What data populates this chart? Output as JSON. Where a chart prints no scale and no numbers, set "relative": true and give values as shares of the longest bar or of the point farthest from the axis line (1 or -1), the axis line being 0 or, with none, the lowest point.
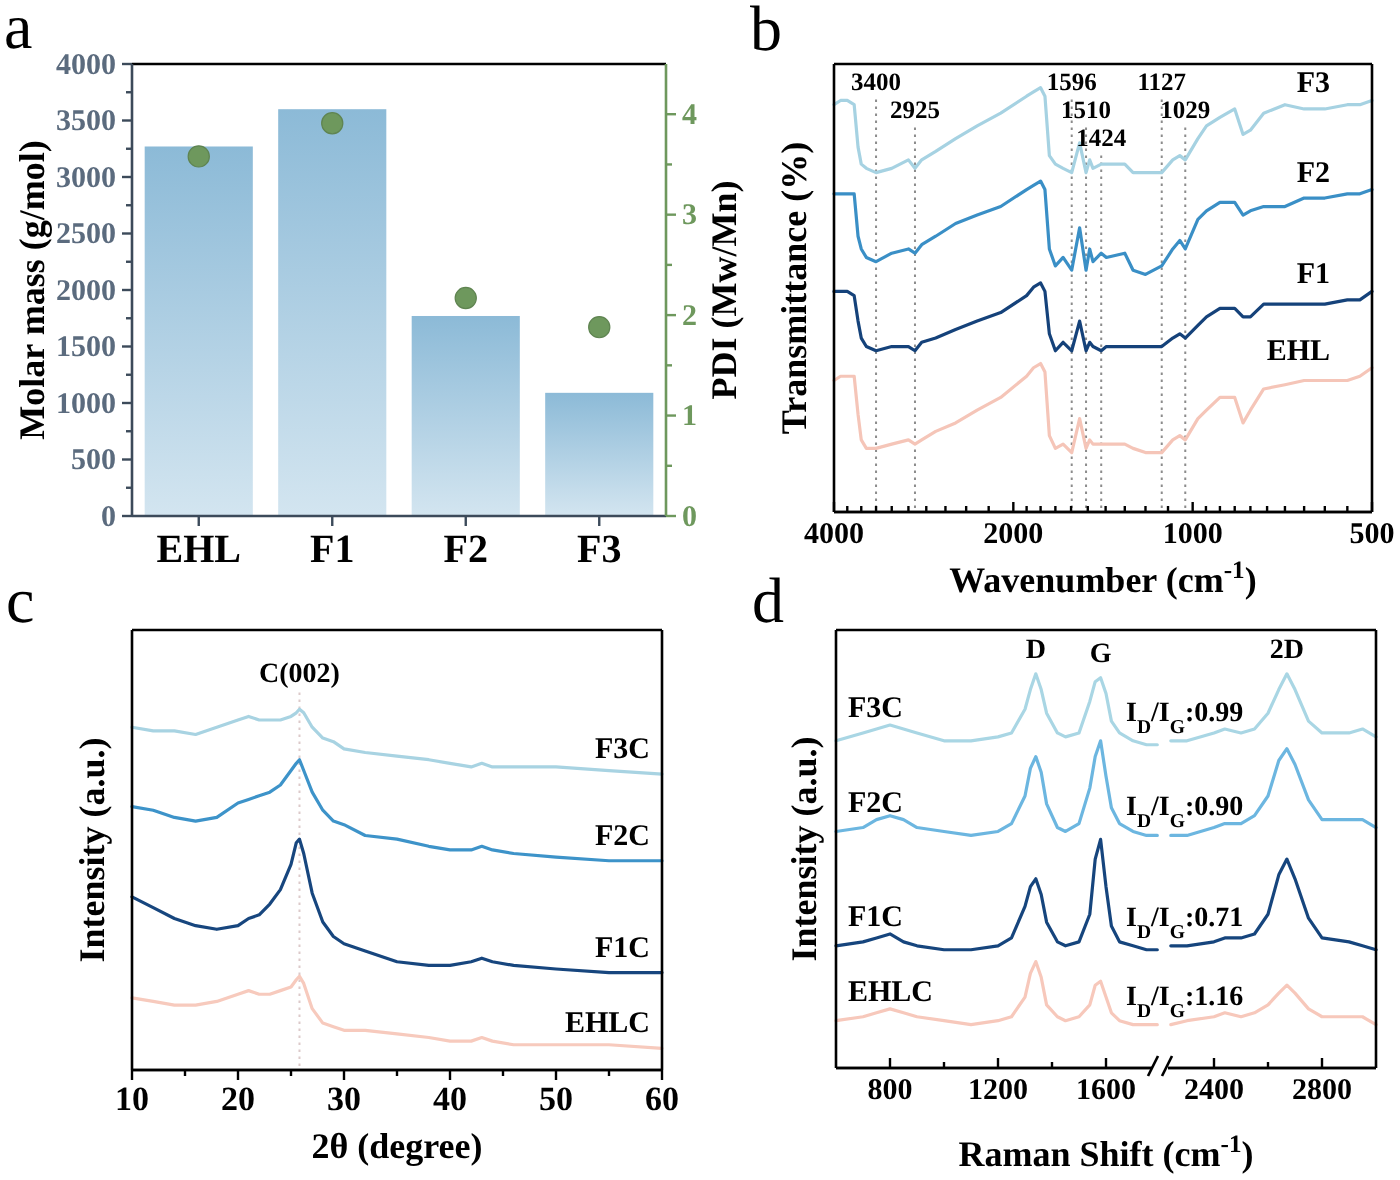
{
  "chart_data": [
    {
      "type": "bar",
      "title": "a",
      "categories": [
        "EHL",
        "F1",
        "F2",
        "F3"
      ],
      "ylabel": "Molar mass (g/mol)",
      "y2label": "PDI (Mw/Mn)",
      "ylim": [
        0,
        4000
      ],
      "yticks": [
        0,
        {
          "value": 250,
          "label": null
        },
        500,
        {
          "value": 750,
          "label": null
        },
        1000,
        {
          "value": 1250,
          "label": null
        },
        1500,
        {
          "value": 1750,
          "label": null
        },
        2000,
        {
          "value": 2250,
          "label": null
        },
        2500,
        {
          "value": 2750,
          "label": null
        },
        3000,
        {
          "value": 3250,
          "label": null
        },
        3500,
        {
          "value": 3750,
          "label": null
        },
        4000
      ],
      "y2lim": [
        0,
        4.5
      ],
      "y2ticks": [
        0,
        {
          "value": 0.5,
          "label": null
        },
        1,
        {
          "value": 1.5,
          "label": null
        },
        2,
        {
          "value": 2.5,
          "label": null
        },
        3,
        {
          "value": 3.5,
          "label": null
        },
        4
      ],
      "marker": "circle",
      "series": [
        {
          "color": "#8cbad7",
          "values": [
            3270,
            3600,
            1770,
            1090
          ]
        },
        {
          "type": "scatter",
          "axis": "y2",
          "color": "#6e985d",
          "x": [
            "EHL",
            "F1",
            "F2",
            "F3"
          ],
          "values": [
            3.58,
            3.91,
            2.17,
            1.88
          ]
        }
      ]
    },
    {
      "type": "line",
      "title": "b",
      "xlabel": "Wavenumber (cm$^{-1}$)",
      "ylabel": "Transmittance (%)",
      "relative": true,
      "log": "x",
      "xlim": [
        4000,
        500
      ],
      "xticks": [
        4000,
        {
          "value": 3800,
          "label": null
        },
        {
          "value": 3600,
          "label": null
        },
        {
          "value": 3400,
          "label": null
        },
        {
          "value": 3200,
          "label": null
        },
        {
          "value": 3000,
          "label": null
        },
        {
          "value": 2800,
          "label": null
        },
        {
          "value": 2600,
          "label": null
        },
        {
          "value": 2400,
          "label": null
        },
        {
          "value": 2200,
          "label": null
        },
        2000,
        {
          "value": 1900,
          "label": null
        },
        {
          "value": 1800,
          "label": null
        },
        {
          "value": 1700,
          "label": null
        },
        {
          "value": 1600,
          "label": null
        },
        {
          "value": 1500,
          "label": null
        },
        {
          "value": 1400,
          "label": null
        },
        {
          "value": 1300,
          "label": null
        },
        {
          "value": 1200,
          "label": null
        },
        {
          "value": 1100,
          "label": null
        },
        1000,
        {
          "value": 950,
          "label": null
        },
        {
          "value": 900,
          "label": null
        },
        {
          "value": 850,
          "label": null
        },
        {
          "value": 800,
          "label": null
        },
        {
          "value": 750,
          "label": null
        },
        {
          "value": 700,
          "label": null
        },
        {
          "value": 650,
          "label": null
        },
        {
          "value": 600,
          "label": null
        },
        {
          "value": 550,
          "label": null
        },
        500
      ],
      "x": [
        4000,
        3900,
        3800,
        3700,
        3645,
        3600,
        3530,
        3400,
        3200,
        3000,
        2925,
        2850,
        2700,
        2500,
        2300,
        2100,
        1900,
        1850,
        1800,
        1770,
        1740,
        1700,
        1650,
        1596,
        1548,
        1510,
        1489,
        1470,
        1424,
        1396,
        1300,
        1259,
        1200,
        1127,
        1080,
        1051,
        1029,
        980,
        948,
        900,
        850,
        823,
        800,
        760,
        700,
        650,
        600,
        550,
        524,
        500
      ],
      "series": [
        {
          "name": "F3",
          "color": "#a6d2e2",
          "values": [
            0.96,
            0.97,
            0.97,
            0.96,
            0.86,
            0.82,
            0.81,
            0.8,
            0.81,
            0.83,
            0.81,
            0.83,
            0.85,
            0.88,
            0.91,
            0.94,
            0.98,
            0.99,
            1.0,
            0.98,
            0.84,
            0.82,
            0.81,
            0.8,
            0.87,
            0.8,
            0.83,
            0.81,
            0.82,
            0.82,
            0.82,
            0.8,
            0.8,
            0.8,
            0.83,
            0.84,
            0.83,
            0.88,
            0.91,
            0.93,
            0.95,
            0.89,
            0.9,
            0.94,
            0.96,
            0.95,
            0.95,
            0.96,
            0.96,
            0.97
          ]
        },
        {
          "name": "F2",
          "color": "#3a8fc6",
          "values": [
            0.75,
            0.75,
            0.75,
            0.75,
            0.65,
            0.62,
            0.6,
            0.59,
            0.61,
            0.62,
            0.61,
            0.63,
            0.65,
            0.68,
            0.7,
            0.72,
            0.76,
            0.77,
            0.78,
            0.76,
            0.62,
            0.58,
            0.6,
            0.57,
            0.67,
            0.57,
            0.62,
            0.59,
            0.61,
            0.6,
            0.61,
            0.57,
            0.56,
            0.58,
            0.62,
            0.64,
            0.62,
            0.69,
            0.71,
            0.73,
            0.73,
            0.7,
            0.71,
            0.72,
            0.72,
            0.74,
            0.74,
            0.75,
            0.75,
            0.76
          ]
        },
        {
          "name": "F1",
          "color": "#15427a",
          "values": [
            0.52,
            0.52,
            0.52,
            0.51,
            0.45,
            0.41,
            0.39,
            0.38,
            0.39,
            0.39,
            0.38,
            0.4,
            0.41,
            0.43,
            0.45,
            0.47,
            0.51,
            0.53,
            0.54,
            0.52,
            0.42,
            0.38,
            0.4,
            0.38,
            0.45,
            0.38,
            0.4,
            0.39,
            0.38,
            0.39,
            0.39,
            0.39,
            0.39,
            0.39,
            0.41,
            0.42,
            0.41,
            0.44,
            0.46,
            0.48,
            0.48,
            0.46,
            0.46,
            0.49,
            0.49,
            0.49,
            0.49,
            0.5,
            0.5,
            0.52
          ]
        },
        {
          "name": "EHL",
          "color": "#f5c5b8",
          "values": [
            0.31,
            0.32,
            0.32,
            0.32,
            0.23,
            0.17,
            0.15,
            0.15,
            0.16,
            0.17,
            0.16,
            0.17,
            0.19,
            0.21,
            0.24,
            0.27,
            0.32,
            0.34,
            0.35,
            0.33,
            0.18,
            0.15,
            0.16,
            0.14,
            0.22,
            0.15,
            0.17,
            0.16,
            0.16,
            0.16,
            0.16,
            0.15,
            0.14,
            0.14,
            0.17,
            0.18,
            0.17,
            0.22,
            0.24,
            0.27,
            0.27,
            0.21,
            0.24,
            0.29,
            0.3,
            0.31,
            0.31,
            0.31,
            0.32,
            0.34
          ]
        }
      ],
      "ref_lines": [
        {
          "axis": "x",
          "value": 3400,
          "label": "3400",
          "color": "#8c8c8c",
          "line_style": "dotted"
        },
        {
          "axis": "x",
          "value": 2925,
          "label": "2925",
          "color": "#8c8c8c",
          "line_style": "dotted"
        },
        {
          "axis": "x",
          "value": 1596,
          "label": "1596",
          "color": "#8c8c8c",
          "line_style": "dotted"
        },
        {
          "axis": "x",
          "value": 1510,
          "label": "1510",
          "color": "#8c8c8c",
          "line_style": "dotted"
        },
        {
          "axis": "x",
          "value": 1424,
          "label": "1424",
          "color": "#8c8c8c",
          "line_style": "dotted"
        },
        {
          "axis": "x",
          "value": 1127,
          "label": "1127",
          "color": "#8c8c8c",
          "line_style": "dotted"
        },
        {
          "axis": "x",
          "value": 1029,
          "label": "1029",
          "color": "#8c8c8c",
          "line_style": "dotted"
        }
      ]
    },
    {
      "type": "line",
      "title": "c",
      "xlabel": "2θ (degree)",
      "ylabel": "Intensity (a.u.)",
      "relative": true,
      "xlim": [
        10,
        60
      ],
      "xticks": [
        10,
        {
          "value": 15,
          "label": null
        },
        20,
        {
          "value": 25,
          "label": null
        },
        30,
        {
          "value": 35,
          "label": null
        },
        40,
        {
          "value": 45,
          "label": null
        },
        50,
        {
          "value": 55,
          "label": null
        },
        60
      ],
      "x": [
        10,
        12,
        14,
        16,
        18,
        20,
        21,
        22,
        23,
        24,
        25,
        25.5,
        25.8,
        26.2,
        27,
        28,
        29,
        30,
        32,
        35,
        38,
        40,
        42,
        43,
        44,
        46,
        50,
        55,
        60
      ],
      "series": [
        {
          "name": "F3C",
          "color": "#a8d3e2",
          "values": [
            0.95,
            0.94,
            0.94,
            0.93,
            0.95,
            0.97,
            0.98,
            0.97,
            0.97,
            0.97,
            0.98,
            0.99,
            1.0,
            0.99,
            0.95,
            0.92,
            0.91,
            0.89,
            0.88,
            0.87,
            0.86,
            0.85,
            0.84,
            0.85,
            0.84,
            0.84,
            0.84,
            0.83,
            0.82
          ]
        },
        {
          "name": "F2C",
          "color": "#3d93c9",
          "values": [
            0.73,
            0.72,
            0.7,
            0.69,
            0.7,
            0.74,
            0.75,
            0.76,
            0.77,
            0.79,
            0.83,
            0.85,
            0.86,
            0.83,
            0.77,
            0.72,
            0.69,
            0.68,
            0.65,
            0.64,
            0.62,
            0.61,
            0.61,
            0.62,
            0.61,
            0.6,
            0.59,
            0.58,
            0.58
          ]
        },
        {
          "name": "F1C",
          "color": "#17467e",
          "values": [
            0.48,
            0.45,
            0.42,
            0.4,
            0.39,
            0.4,
            0.42,
            0.43,
            0.46,
            0.5,
            0.57,
            0.63,
            0.64,
            0.6,
            0.49,
            0.41,
            0.37,
            0.35,
            0.33,
            0.3,
            0.29,
            0.29,
            0.3,
            0.31,
            0.3,
            0.29,
            0.28,
            0.27,
            0.27
          ]
        },
        {
          "name": "EHLC",
          "color": "#f7cabd",
          "values": [
            0.2,
            0.19,
            0.18,
            0.18,
            0.19,
            0.21,
            0.22,
            0.21,
            0.21,
            0.22,
            0.23,
            0.25,
            0.26,
            0.24,
            0.17,
            0.13,
            0.12,
            0.11,
            0.11,
            0.1,
            0.09,
            0.08,
            0.08,
            0.09,
            0.08,
            0.07,
            0.07,
            0.07,
            0.06
          ]
        }
      ],
      "ref_lines": [
        {
          "axis": "x",
          "value": 25.8,
          "label": "C(002)",
          "color": "#dccaca",
          "line_style": "dotted"
        }
      ]
    },
    {
      "type": "line",
      "title": "d",
      "xlabel": "Raman Shift (cm$^{-1}$)",
      "ylabel": "Intensity (a.u.)",
      "relative": true,
      "xlim": [
        600,
        1800
      ],
      "xticks": [
        800,
        {
          "value": 1000,
          "label": null
        },
        1200,
        {
          "value": 1400,
          "label": null
        },
        1600
      ],
      "x": [
        600,
        700,
        750,
        800,
        850,
        900,
        1000,
        1100,
        1200,
        1250,
        1300,
        1320,
        1340,
        1360,
        1380,
        1420,
        1450,
        1500,
        1540,
        1560,
        1580,
        1600,
        1620,
        1650,
        1700,
        1750,
        1790
      ],
      "series": [
        {
          "name": "F3C",
          "color": "#a9d6e4",
          "values": [
            0.83,
            0.85,
            0.86,
            0.87,
            0.86,
            0.85,
            0.83,
            0.83,
            0.84,
            0.85,
            0.91,
            0.96,
            1.0,
            0.96,
            0.9,
            0.85,
            0.84,
            0.85,
            0.93,
            0.98,
            0.99,
            0.95,
            0.88,
            0.85,
            0.83,
            0.82,
            0.82
          ]
        },
        {
          "name": "F2C",
          "color": "#6cb6e0",
          "values": [
            0.6,
            0.61,
            0.63,
            0.64,
            0.63,
            0.61,
            0.6,
            0.59,
            0.6,
            0.62,
            0.69,
            0.76,
            0.79,
            0.75,
            0.67,
            0.61,
            0.6,
            0.62,
            0.71,
            0.79,
            0.83,
            0.74,
            0.66,
            0.62,
            0.6,
            0.59,
            0.59
          ]
        },
        {
          "name": "F1C",
          "color": "#16457d",
          "values": [
            0.31,
            0.32,
            0.33,
            0.34,
            0.32,
            0.31,
            0.3,
            0.3,
            0.31,
            0.33,
            0.41,
            0.46,
            0.48,
            0.44,
            0.37,
            0.32,
            0.31,
            0.32,
            0.39,
            0.53,
            0.58,
            0.46,
            0.36,
            0.32,
            0.31,
            0.3,
            0.3
          ]
        },
        {
          "name": "EHLC",
          "color": "#f7c8bb",
          "values": [
            0.12,
            0.13,
            0.14,
            0.15,
            0.14,
            0.13,
            0.12,
            0.11,
            0.12,
            0.13,
            0.18,
            0.24,
            0.27,
            0.23,
            0.16,
            0.13,
            0.12,
            0.13,
            0.16,
            0.21,
            0.22,
            0.18,
            0.14,
            0.12,
            0.11,
            0.11,
            0.11
          ]
        }
      ],
      "annotations": [
        {
          "text": "D",
          "x": 1340,
          "y": 1.0
        },
        {
          "text": "G",
          "x": 1580,
          "y": 0.99
        }
      ]
    },
    {
      "type": "line",
      "relative": true,
      "xlim": [
        2200,
        3000
      ],
      "xticks": [
        2400,
        {
          "value": 2600,
          "label": null
        },
        2800
      ],
      "x": [
        2240,
        2300,
        2400,
        2440,
        2500,
        2550,
        2600,
        2640,
        2670,
        2700,
        2750,
        2800,
        2900,
        2950,
        3000
      ],
      "series": [
        {
          "color": "#a9d6e4",
          "values": [
            0.83,
            0.83,
            0.85,
            0.86,
            0.85,
            0.86,
            0.9,
            0.96,
            1.0,
            0.96,
            0.88,
            0.85,
            0.85,
            0.86,
            0.84
          ]
        },
        {
          "color": "#6cb6e0",
          "values": [
            0.59,
            0.59,
            0.61,
            0.62,
            0.62,
            0.64,
            0.69,
            0.78,
            0.81,
            0.77,
            0.68,
            0.63,
            0.63,
            0.63,
            0.61
          ]
        },
        {
          "color": "#16457d",
          "values": [
            0.31,
            0.31,
            0.32,
            0.33,
            0.33,
            0.34,
            0.39,
            0.49,
            0.53,
            0.48,
            0.38,
            0.33,
            0.32,
            0.31,
            0.3
          ]
        },
        {
          "color": "#f7c8bb",
          "values": [
            0.11,
            0.12,
            0.13,
            0.14,
            0.13,
            0.14,
            0.16,
            0.19,
            0.21,
            0.19,
            0.15,
            0.13,
            0.13,
            0.13,
            0.11
          ]
        }
      ],
      "annotations": [
        {
          "text": "2D",
          "x": 2670,
          "y": 1.0
        },
        "I$_{D}$/I$_{G}$:0.99",
        "I$_{D}$/I$_{G}$:0.90",
        "I$_{D}$/I$_{G}$:0.71",
        "I$_{D}$/I$_{G}$:1.16"
      ]
    }
  ]
}
